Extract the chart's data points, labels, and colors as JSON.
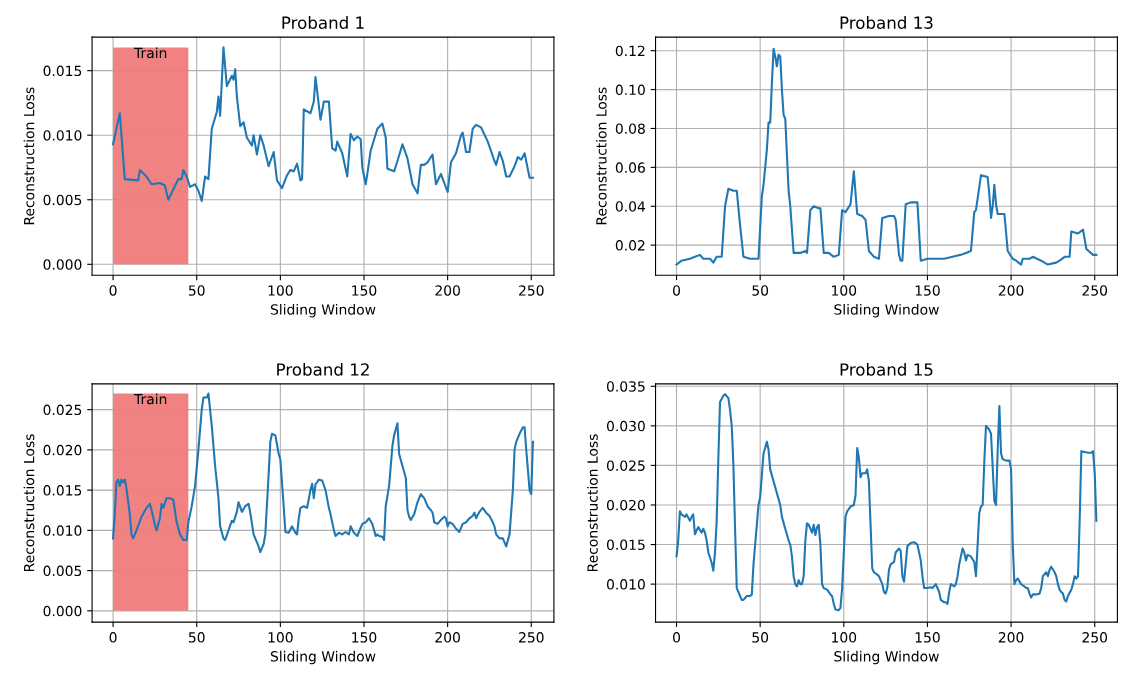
{
  "chart_data": [
    {
      "type": "line",
      "title": "Proband 1",
      "xlabel": "Sliding Window",
      "ylabel": "Reconstruction Loss",
      "grid": true,
      "xlim": [
        -12.55,
        263.55
      ],
      "xticks": [
        0,
        50,
        100,
        150,
        200,
        250
      ],
      "ylim": [
        -0.00085,
        0.0176
      ],
      "yticks": [
        {
          "value": 0.0,
          "label": "0.000"
        },
        0.005,
        {
          "value": 0.01,
          "label": "0.010"
        },
        0.015
      ],
      "bands": [
        {
          "axis": "x",
          "from": 0,
          "to": 45,
          "label": "Train",
          "color": "#ef7b7b"
        }
      ],
      "series": [
        {
          "color": "#1f77b4",
          "x": [
            0,
            4,
            7,
            15,
            16,
            20,
            23,
            28,
            31,
            33,
            36,
            39,
            41,
            42,
            44,
            46,
            49,
            51,
            53,
            55,
            57,
            59,
            62,
            63,
            64,
            66,
            68,
            71,
            72,
            73,
            74,
            76,
            78,
            80,
            83,
            84,
            86,
            88,
            90,
            93,
            96,
            98,
            101,
            104,
            106,
            108,
            110,
            112,
            113,
            114,
            118,
            120,
            121,
            124,
            126,
            129,
            131,
            133,
            134,
            137,
            140,
            142,
            144,
            146,
            148,
            149,
            151,
            152,
            154,
            158,
            161,
            163,
            164,
            168,
            170,
            173,
            176,
            179,
            182,
            184,
            186,
            188,
            191,
            193,
            196,
            200,
            202,
            205,
            208,
            209,
            211,
            213,
            215,
            217,
            220,
            224,
            228,
            229,
            231,
            233,
            235,
            237,
            240,
            242,
            244,
            246,
            249,
            251
          ],
          "values": [
            0.0093,
            0.0117,
            0.0066,
            0.0065,
            0.0073,
            0.0068,
            0.0062,
            0.0063,
            0.0061,
            0.005,
            0.0058,
            0.0066,
            0.0066,
            0.0073,
            0.0068,
            0.006,
            0.0062,
            0.0057,
            0.0049,
            0.0068,
            0.0066,
            0.0105,
            0.0118,
            0.013,
            0.0115,
            0.0168,
            0.0138,
            0.0146,
            0.0143,
            0.0151,
            0.013,
            0.0107,
            0.011,
            0.0098,
            0.0092,
            0.01,
            0.0085,
            0.01,
            0.0092,
            0.0076,
            0.0087,
            0.0065,
            0.0059,
            0.0069,
            0.0073,
            0.0072,
            0.0078,
            0.0065,
            0.0066,
            0.012,
            0.0117,
            0.0126,
            0.0145,
            0.0112,
            0.0126,
            0.0126,
            0.009,
            0.0088,
            0.0095,
            0.0086,
            0.0068,
            0.0101,
            0.0096,
            0.0099,
            0.0097,
            0.0075,
            0.0062,
            0.007,
            0.0088,
            0.0105,
            0.0109,
            0.0098,
            0.0074,
            0.0072,
            0.008,
            0.0093,
            0.0082,
            0.0062,
            0.0055,
            0.0077,
            0.0077,
            0.0079,
            0.0085,
            0.0062,
            0.007,
            0.0056,
            0.0079,
            0.0086,
            0.01,
            0.0102,
            0.0087,
            0.0087,
            0.0105,
            0.0108,
            0.0106,
            0.0095,
            0.008,
            0.0077,
            0.0087,
            0.008,
            0.0068,
            0.0068,
            0.0076,
            0.0083,
            0.0081,
            0.0086,
            0.0067,
            0.0067
          ]
        }
      ]
    },
    {
      "type": "line",
      "title": "Proband 13",
      "xlabel": "Sliding Window",
      "ylabel": "Reconstruction Loss",
      "grid": true,
      "xlim": [
        -12.55,
        263.55
      ],
      "xticks": [
        0,
        50,
        100,
        150,
        200,
        250
      ],
      "ylim": [
        0.0045,
        0.127
      ],
      "yticks": [
        0.02,
        0.04,
        0.06,
        0.08,
        {
          "value": 0.1,
          "label": "0.10"
        },
        0.12
      ],
      "series": [
        {
          "color": "#1f77b4",
          "x": [
            0,
            3,
            8,
            14,
            16,
            20,
            22,
            24,
            27,
            29,
            31,
            34,
            36,
            38,
            40,
            44,
            48,
            49,
            51,
            52,
            54,
            55,
            56,
            57,
            58,
            59,
            60,
            61,
            62,
            63,
            64,
            65,
            67,
            68,
            70,
            74,
            77,
            78,
            80,
            82,
            85,
            86,
            88,
            91,
            94,
            97,
            99,
            101,
            104,
            106,
            108,
            111,
            113,
            115,
            118,
            121,
            123,
            127,
            130,
            131,
            133,
            134,
            135,
            137,
            140,
            142,
            144,
            146,
            150,
            155,
            160,
            165,
            170,
            173,
            176,
            178,
            179,
            181,
            182,
            186,
            187,
            188,
            189,
            190,
            191,
            192,
            194,
            196,
            198,
            201,
            203,
            206,
            207,
            211,
            213,
            218,
            222,
            227,
            229,
            232,
            235,
            236,
            240,
            243,
            245,
            249,
            251
          ],
          "values": [
            0.01,
            0.012,
            0.013,
            0.015,
            0.013,
            0.013,
            0.011,
            0.014,
            0.014,
            0.04,
            0.049,
            0.048,
            0.048,
            0.03,
            0.014,
            0.013,
            0.013,
            0.013,
            0.045,
            0.051,
            0.069,
            0.083,
            0.083,
            0.103,
            0.121,
            0.117,
            0.112,
            0.118,
            0.117,
            0.1,
            0.087,
            0.085,
            0.048,
            0.04,
            0.016,
            0.016,
            0.017,
            0.016,
            0.038,
            0.04,
            0.039,
            0.039,
            0.016,
            0.016,
            0.014,
            0.015,
            0.038,
            0.037,
            0.041,
            0.058,
            0.036,
            0.035,
            0.033,
            0.017,
            0.014,
            0.013,
            0.034,
            0.035,
            0.035,
            0.033,
            0.015,
            0.012,
            0.012,
            0.041,
            0.042,
            0.042,
            0.042,
            0.012,
            0.013,
            0.013,
            0.013,
            0.014,
            0.015,
            0.016,
            0.017,
            0.037,
            0.038,
            0.05,
            0.056,
            0.055,
            0.046,
            0.034,
            0.04,
            0.051,
            0.041,
            0.036,
            0.036,
            0.036,
            0.017,
            0.013,
            0.012,
            0.01,
            0.013,
            0.013,
            0.014,
            0.012,
            0.01,
            0.011,
            0.012,
            0.014,
            0.014,
            0.027,
            0.026,
            0.028,
            0.018,
            0.015,
            0.015
          ]
        }
      ]
    },
    {
      "type": "line",
      "title": "Proband 12",
      "xlabel": "Sliding Window",
      "ylabel": "Reconstruction Loss",
      "grid": true,
      "xlim": [
        -12.55,
        263.55
      ],
      "xticks": [
        0,
        50,
        100,
        150,
        200,
        250
      ],
      "ylim": [
        -0.0014,
        0.0282
      ],
      "yticks": [
        {
          "value": 0.0,
          "label": "0.000"
        },
        0.005,
        {
          "value": 0.01,
          "label": "0.010"
        },
        0.015,
        {
          "value": 0.02,
          "label": "0.020"
        },
        0.025
      ],
      "bands": [
        {
          "axis": "x",
          "from": 0,
          "to": 45,
          "label": "Train",
          "color": "#ef7b7b"
        }
      ],
      "series": [
        {
          "color": "#1f77b4",
          "x": [
            0,
            1,
            2,
            3,
            4,
            5,
            6,
            7,
            8,
            10,
            11,
            12,
            14,
            17,
            20,
            22,
            23,
            25,
            26,
            28,
            29,
            30,
            32,
            34,
            36,
            38,
            40,
            42,
            44,
            45,
            47,
            49,
            51,
            53,
            54,
            56,
            57,
            59,
            61,
            63,
            64,
            66,
            67,
            69,
            71,
            72,
            74,
            75,
            77,
            79,
            81,
            82,
            84,
            86,
            87,
            88,
            90,
            91,
            93,
            94,
            95,
            97,
            99,
            100,
            102,
            103,
            105,
            107,
            109,
            110,
            111,
            112,
            114,
            116,
            118,
            119,
            120,
            121,
            123,
            125,
            127,
            129,
            130,
            132,
            133,
            135,
            137,
            139,
            141,
            142,
            144,
            146,
            149,
            151,
            153,
            155,
            157,
            158,
            159,
            161,
            162,
            163,
            165,
            167,
            168,
            170,
            171,
            173,
            175,
            176,
            177,
            178,
            180,
            182,
            184,
            186,
            188,
            190,
            191,
            192,
            194,
            196,
            198,
            199,
            200,
            201,
            203,
            205,
            207,
            209,
            211,
            213,
            215,
            216,
            217,
            219,
            221,
            223,
            225,
            227,
            228,
            229,
            231,
            233,
            235,
            237,
            239,
            240,
            241,
            243,
            245,
            246,
            247,
            248,
            249,
            250,
            251
          ],
          "values": [
            0.009,
            0.012,
            0.016,
            0.0163,
            0.0155,
            0.0163,
            0.016,
            0.0163,
            0.0152,
            0.012,
            0.0095,
            0.009,
            0.01,
            0.0117,
            0.0128,
            0.0133,
            0.0125,
            0.0107,
            0.01,
            0.0115,
            0.0133,
            0.0128,
            0.014,
            0.014,
            0.0138,
            0.011,
            0.0095,
            0.0088,
            0.0088,
            0.011,
            0.013,
            0.0155,
            0.02,
            0.025,
            0.0265,
            0.0265,
            0.027,
            0.023,
            0.018,
            0.014,
            0.0105,
            0.009,
            0.0088,
            0.01,
            0.0112,
            0.011,
            0.0123,
            0.0135,
            0.0123,
            0.013,
            0.0133,
            0.0122,
            0.0095,
            0.0085,
            0.008,
            0.0073,
            0.0083,
            0.0095,
            0.017,
            0.021,
            0.022,
            0.0218,
            0.0195,
            0.0188,
            0.013,
            0.0098,
            0.0097,
            0.0105,
            0.0097,
            0.0095,
            0.0115,
            0.0128,
            0.013,
            0.0128,
            0.015,
            0.0158,
            0.014,
            0.0157,
            0.0163,
            0.0162,
            0.015,
            0.0128,
            0.012,
            0.01,
            0.0093,
            0.0097,
            0.0095,
            0.0098,
            0.0095,
            0.0105,
            0.0097,
            0.0093,
            0.0108,
            0.011,
            0.0115,
            0.0108,
            0.0093,
            0.0095,
            0.0093,
            0.0092,
            0.0088,
            0.013,
            0.0155,
            0.0205,
            0.0218,
            0.0233,
            0.0195,
            0.018,
            0.0165,
            0.0125,
            0.0117,
            0.0113,
            0.012,
            0.0135,
            0.0145,
            0.014,
            0.013,
            0.0125,
            0.0122,
            0.011,
            0.0108,
            0.0113,
            0.0117,
            0.0115,
            0.0105,
            0.011,
            0.0108,
            0.0102,
            0.0098,
            0.0108,
            0.011,
            0.0115,
            0.0118,
            0.0122,
            0.0115,
            0.0123,
            0.0128,
            0.0122,
            0.0118,
            0.011,
            0.0105,
            0.0095,
            0.009,
            0.009,
            0.008,
            0.0095,
            0.015,
            0.02,
            0.021,
            0.022,
            0.0228,
            0.0228,
            0.02,
            0.0175,
            0.015,
            0.0145,
            0.021
          ]
        }
      ]
    },
    {
      "type": "line",
      "title": "Proband 15",
      "xlabel": "Sliding Window",
      "ylabel": "Reconstruction Loss",
      "grid": true,
      "xlim": [
        -12.55,
        263.55
      ],
      "xticks": [
        0,
        50,
        100,
        150,
        200,
        250
      ],
      "ylim": [
        0.0052,
        0.0353
      ],
      "yticks": [
        {
          "value": 0.01,
          "label": "0.010"
        },
        0.015,
        {
          "value": 0.02,
          "label": "0.020"
        },
        0.025,
        {
          "value": 0.03,
          "label": "0.030"
        },
        0.035
      ],
      "series": [
        {
          "color": "#1f77b4",
          "x": [
            0,
            1,
            2,
            3,
            5,
            6,
            8,
            9,
            10,
            11,
            12,
            13,
            15,
            16,
            17,
            18,
            19,
            21,
            22,
            23,
            24,
            25,
            26,
            28,
            29,
            31,
            32,
            33,
            34,
            35,
            36,
            37,
            39,
            40,
            42,
            44,
            45,
            46,
            47,
            49,
            50,
            52,
            54,
            55,
            56,
            58,
            60,
            62,
            63,
            65,
            67,
            68,
            69,
            70,
            71,
            72,
            73,
            74,
            75,
            76,
            77,
            78,
            79,
            80,
            81,
            82,
            83,
            84,
            85,
            86,
            87,
            88,
            90,
            92,
            93,
            94,
            95,
            97,
            98,
            99,
            100,
            101,
            102,
            104,
            106,
            107,
            108,
            109,
            110,
            111,
            113,
            114,
            115,
            116,
            117,
            118,
            120,
            121,
            123,
            124,
            125,
            126,
            127,
            128,
            130,
            131,
            133,
            134,
            135,
            136,
            137,
            138,
            140,
            142,
            144,
            146,
            147,
            148,
            150,
            152,
            153,
            155,
            157,
            158,
            160,
            161,
            162,
            163,
            164,
            166,
            167,
            168,
            169,
            171,
            172,
            173,
            174,
            176,
            178,
            179,
            180,
            181,
            182,
            183,
            184,
            185,
            187,
            188,
            190,
            191,
            192,
            193,
            194,
            195,
            197,
            199,
            200,
            201,
            202,
            203,
            204,
            206,
            208,
            209,
            210,
            211,
            212,
            213,
            215,
            217,
            218,
            219,
            221,
            222,
            223,
            224,
            226,
            227,
            228,
            229,
            230,
            231,
            232,
            233,
            234,
            236,
            237,
            238,
            239,
            240,
            241,
            242,
            244,
            246,
            248,
            249,
            250,
            251
          ],
          "values": [
            0.0135,
            0.0155,
            0.0192,
            0.0188,
            0.0185,
            0.0188,
            0.018,
            0.0185,
            0.0188,
            0.0163,
            0.0168,
            0.0172,
            0.0165,
            0.017,
            0.0165,
            0.0155,
            0.014,
            0.0127,
            0.0117,
            0.014,
            0.018,
            0.026,
            0.033,
            0.0338,
            0.034,
            0.0335,
            0.032,
            0.03,
            0.025,
            0.017,
            0.0095,
            0.009,
            0.008,
            0.008,
            0.0085,
            0.0085,
            0.0087,
            0.0125,
            0.015,
            0.02,
            0.021,
            0.0265,
            0.028,
            0.027,
            0.0245,
            0.023,
            0.0215,
            0.02,
            0.0185,
            0.017,
            0.0155,
            0.015,
            0.0135,
            0.011,
            0.01,
            0.0097,
            0.0105,
            0.01,
            0.01,
            0.011,
            0.0155,
            0.0177,
            0.0175,
            0.017,
            0.0165,
            0.0175,
            0.0162,
            0.0172,
            0.0175,
            0.015,
            0.01,
            0.0095,
            0.0093,
            0.0087,
            0.0085,
            0.0075,
            0.0068,
            0.0067,
            0.007,
            0.0095,
            0.014,
            0.0185,
            0.0192,
            0.0198,
            0.02,
            0.0212,
            0.0272,
            0.026,
            0.0235,
            0.024,
            0.024,
            0.0245,
            0.023,
            0.0175,
            0.012,
            0.0115,
            0.0112,
            0.011,
            0.01,
            0.009,
            0.0088,
            0.0095,
            0.0118,
            0.0125,
            0.0128,
            0.014,
            0.0145,
            0.0142,
            0.011,
            0.0103,
            0.0125,
            0.0148,
            0.0152,
            0.0153,
            0.015,
            0.013,
            0.011,
            0.0095,
            0.0095,
            0.0096,
            0.0095,
            0.01,
            0.009,
            0.008,
            0.0077,
            0.0077,
            0.0075,
            0.009,
            0.01,
            0.0097,
            0.01,
            0.011,
            0.0125,
            0.0145,
            0.014,
            0.013,
            0.0137,
            0.0135,
            0.0128,
            0.011,
            0.015,
            0.019,
            0.0198,
            0.02,
            0.0255,
            0.03,
            0.0295,
            0.029,
            0.0205,
            0.02,
            0.027,
            0.0325,
            0.0265,
            0.0258,
            0.0256,
            0.0256,
            0.0245,
            0.015,
            0.01,
            0.0105,
            0.0107,
            0.01,
            0.0097,
            0.0095,
            0.0095,
            0.0088,
            0.0083,
            0.0087,
            0.0087,
            0.0088,
            0.0095,
            0.011,
            0.0115,
            0.011,
            0.0118,
            0.0122,
            0.0115,
            0.011,
            0.01,
            0.0093,
            0.009,
            0.0088,
            0.008,
            0.0078,
            0.0085,
            0.0093,
            0.01,
            0.011,
            0.0107,
            0.011,
            0.018,
            0.0268,
            0.0267,
            0.0266,
            0.0266,
            0.0268,
            0.024,
            0.018
          ]
        }
      ]
    }
  ]
}
